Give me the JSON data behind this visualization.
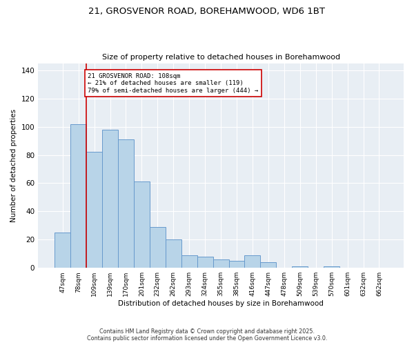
{
  "title_line1": "21, GROSVENOR ROAD, BOREHAMWOOD, WD6 1BT",
  "title_line2": "Size of property relative to detached houses in Borehamwood",
  "xlabel": "Distribution of detached houses by size in Borehamwood",
  "ylabel": "Number of detached properties",
  "categories": [
    "47sqm",
    "78sqm",
    "109sqm",
    "139sqm",
    "170sqm",
    "201sqm",
    "232sqm",
    "262sqm",
    "293sqm",
    "324sqm",
    "355sqm",
    "385sqm",
    "416sqm",
    "447sqm",
    "478sqm",
    "509sqm",
    "539sqm",
    "570sqm",
    "601sqm",
    "632sqm",
    "662sqm"
  ],
  "values": [
    25,
    102,
    82,
    98,
    91,
    61,
    29,
    20,
    9,
    8,
    6,
    5,
    9,
    4,
    0,
    1,
    0,
    1,
    0,
    0,
    0
  ],
  "bar_color": "#b8d4e8",
  "bar_edge_color": "#6699cc",
  "highlight_line_color": "#cc0000",
  "annotation_line1": "21 GROSVENOR ROAD: 108sqm",
  "annotation_line2": "← 21% of detached houses are smaller (119)",
  "annotation_line3": "79% of semi-detached houses are larger (444) →",
  "annotation_box_color": "#ffffff",
  "annotation_box_edge_color": "#cc0000",
  "ylim": [
    0,
    145
  ],
  "yticks": [
    0,
    20,
    40,
    60,
    80,
    100,
    120,
    140
  ],
  "background_color": "#e8eef4",
  "footer_line1": "Contains HM Land Registry data © Crown copyright and database right 2025.",
  "footer_line2": "Contains public sector information licensed under the Open Government Licence v3.0."
}
